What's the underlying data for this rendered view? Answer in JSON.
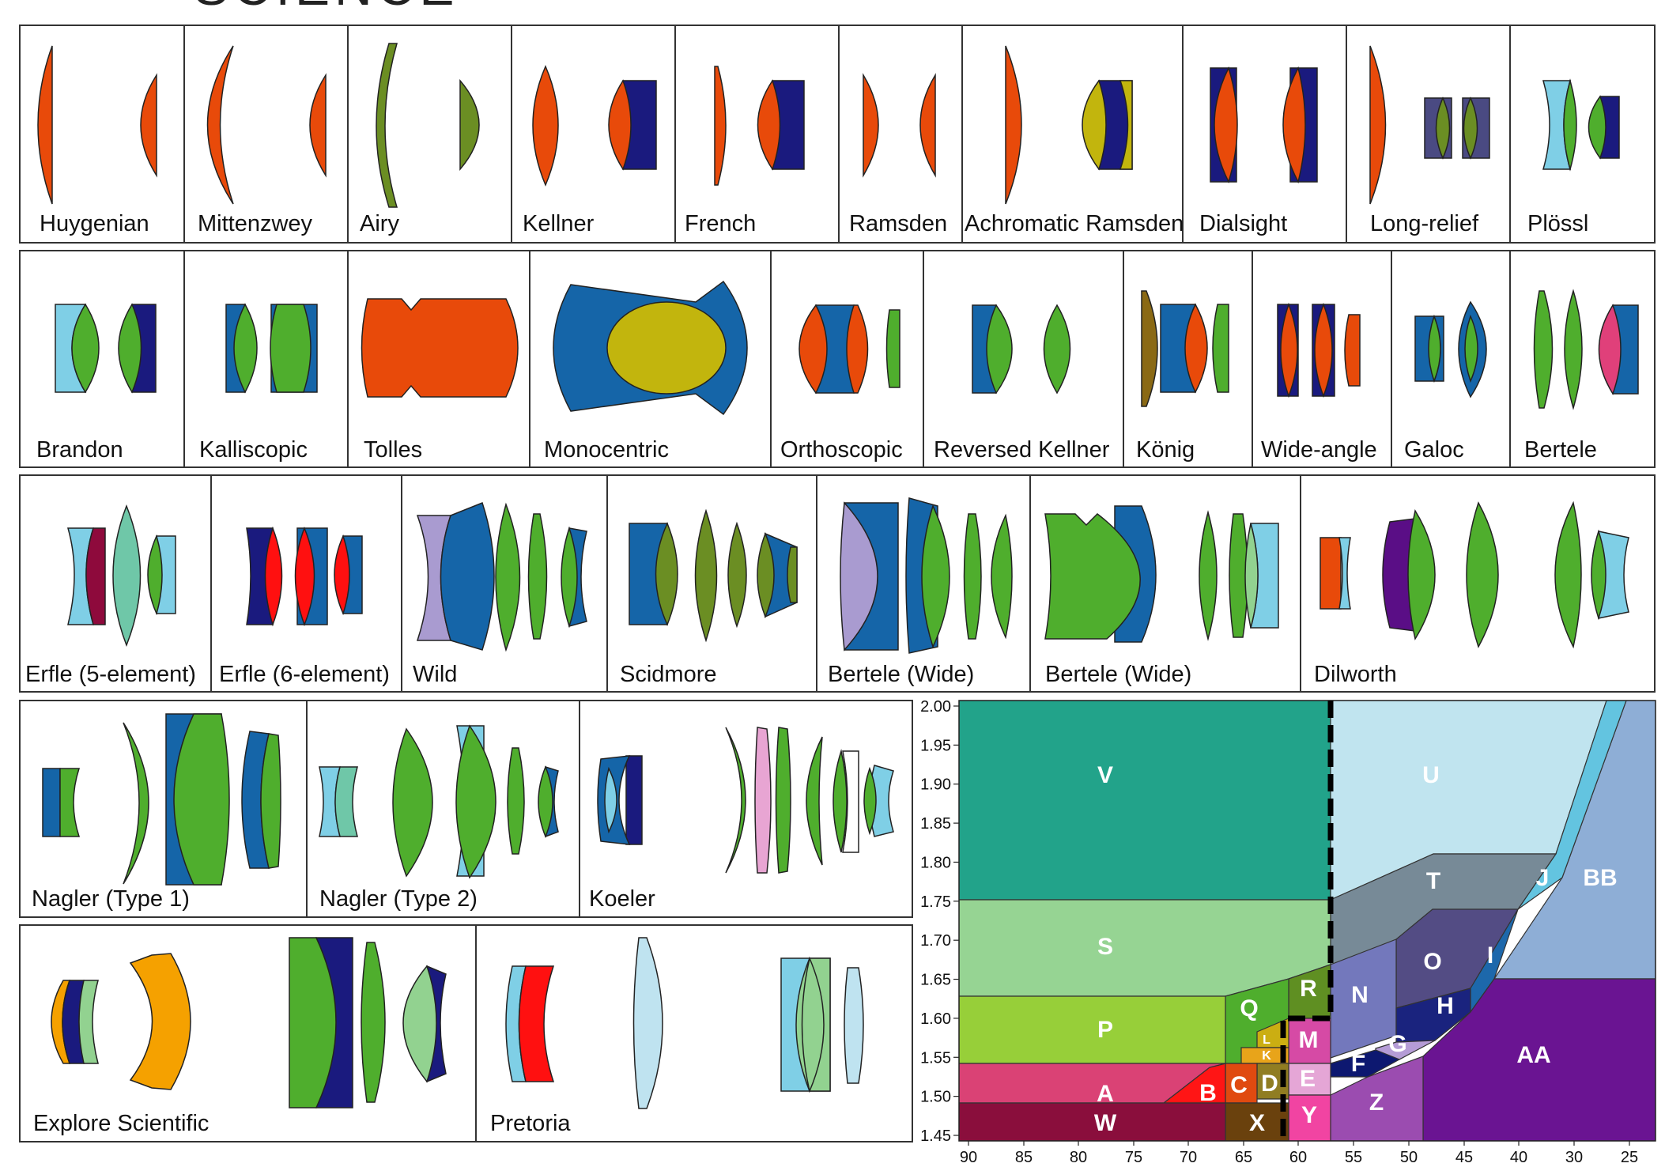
{
  "header": {
    "partial_title": "SCIENCE"
  },
  "colors": {
    "orange": "#E84A0A",
    "navy": "#1A1A7E",
    "olive": "#6B8E23",
    "green": "#4FAE2D",
    "skyblue": "#7FCFE6",
    "paleblue": "#BFE3F0",
    "steelblue": "#1565A8",
    "mustard": "#C2B50D",
    "lavender": "#A99BD0",
    "crimson": "#8E0A3C",
    "red": "#FF1010",
    "mint": "#6FC7A8",
    "purple": "#5A0E86",
    "pink": "#E8A5D3",
    "amber": "#F5A100",
    "lightgreen": "#92D290",
    "brown": "#8A6914",
    "slate": "#4A4A82",
    "rose": "#E0407A"
  },
  "eyepieces": {
    "row1": [
      "Huygenian",
      "Mittenzwey",
      "Airy",
      "Kellner",
      "French",
      "Ramsden",
      "Achromatic Ramsden",
      "Dialsight",
      "Long-relief",
      "Plössl"
    ],
    "row2": [
      "Brandon",
      "Kalliscopic",
      "Tolles",
      "Monocentric",
      "Orthoscopic",
      "Reversed Kellner",
      "König",
      "Wide-angle",
      "Galoc",
      "Bertele"
    ],
    "row3": [
      "Erfle (5-element)",
      "Erfle (6-element)",
      "Wild",
      "Scidmore",
      "Bertele (Wide)",
      "Bertele (Wide)",
      "Dilworth"
    ],
    "row4": [
      "Nagler (Type 1)",
      "Nagler (Type 2)",
      "Koeler"
    ],
    "row5": [
      "Explore Scientific",
      "Pretoria"
    ]
  },
  "chart_data": {
    "type": "area",
    "x_ticks": [
      "90",
      "85",
      "80",
      "75",
      "70",
      "65",
      "60",
      "55",
      "50",
      "45",
      "40",
      "30",
      "25"
    ],
    "y_ticks": [
      "2.00",
      "1.95",
      "1.90",
      "1.85",
      "1.80",
      "1.75",
      "1.70",
      "1.65",
      "1.60",
      "1.55",
      "1.50",
      "1.45"
    ],
    "regions": [
      {
        "label": "V",
        "color": "#22A38A"
      },
      {
        "label": "U",
        "color": "#C0E4EF"
      },
      {
        "label": "BB",
        "color": "#8EAED6"
      },
      {
        "label": "J",
        "color": "#63C4E0"
      },
      {
        "label": "T",
        "color": "#778A97"
      },
      {
        "label": "S",
        "color": "#96D493"
      },
      {
        "label": "O",
        "color": "#534C84"
      },
      {
        "label": "I",
        "color": "#1D68AB"
      },
      {
        "label": "N",
        "color": "#7378BC"
      },
      {
        "label": "R",
        "color": "#5F8F22"
      },
      {
        "label": "Q",
        "color": "#4FAE2D"
      },
      {
        "label": "P",
        "color": "#97CF39"
      },
      {
        "label": "H",
        "color": "#1A237E"
      },
      {
        "label": "AA",
        "color": "#6A1492"
      },
      {
        "label": "M",
        "color": "#D64AA5"
      },
      {
        "label": "G",
        "color": "#B59CD6"
      },
      {
        "label": "L",
        "color": "#CBAE12"
      },
      {
        "label": "K",
        "color": "#E8A41A"
      },
      {
        "label": "F",
        "color": "#0D1870"
      },
      {
        "label": "E",
        "color": "#E5A6D6"
      },
      {
        "label": "D",
        "color": "#907D22"
      },
      {
        "label": "C",
        "color": "#E04A10"
      },
      {
        "label": "B",
        "color": "#FF1515"
      },
      {
        "label": "A",
        "color": "#DA4275"
      },
      {
        "label": "Z",
        "color": "#9B4CB0"
      },
      {
        "label": "Y",
        "color": "#F144A2"
      },
      {
        "label": "X",
        "color": "#6A410D"
      },
      {
        "label": "W",
        "color": "#8A0E3C"
      }
    ]
  }
}
